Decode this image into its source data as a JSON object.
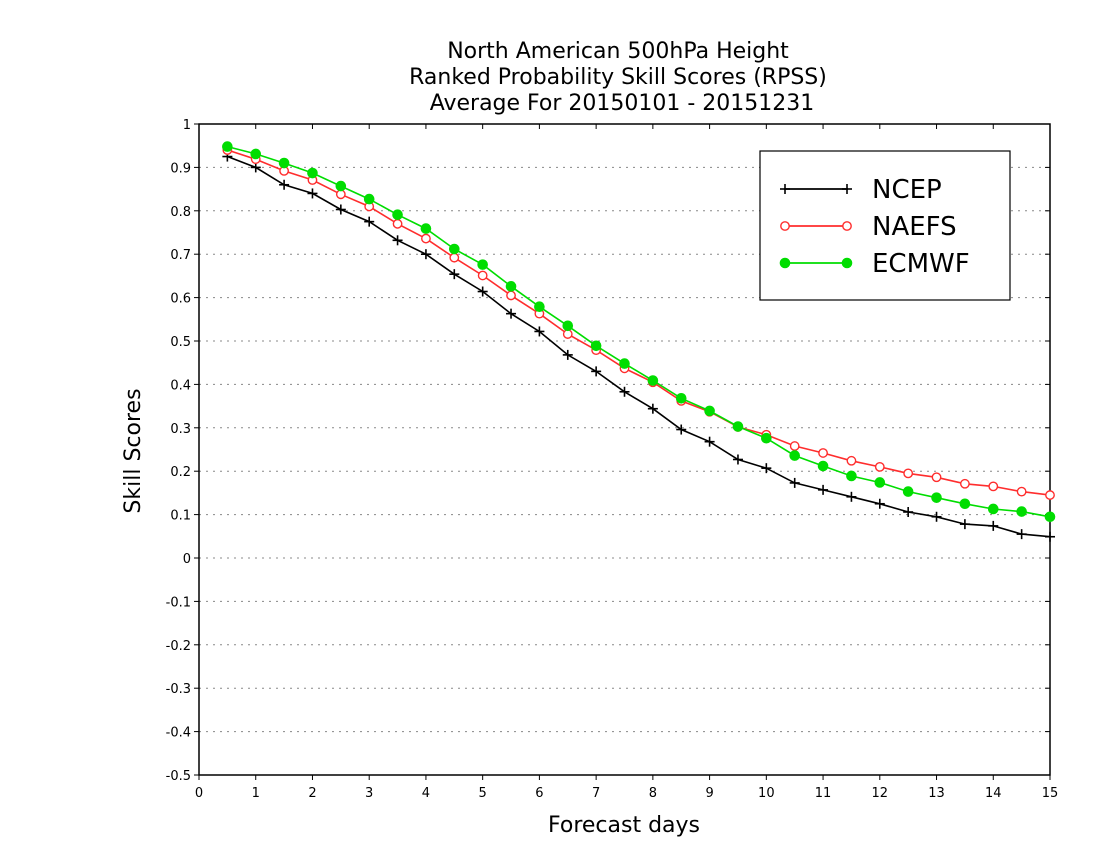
{
  "chart_data": {
    "type": "line",
    "title": [
      "North American 500hPa Height",
      "Ranked Probability Skill Scores (RPSS)",
      "Average For 20150101 - 20151231"
    ],
    "xlabel": "Forecast days",
    "ylabel": "Skill Scores",
    "xlim": [
      0,
      15
    ],
    "ylim": [
      -0.5,
      1
    ],
    "xticks": [
      0,
      1,
      2,
      3,
      4,
      5,
      6,
      7,
      8,
      9,
      10,
      11,
      12,
      13,
      14,
      15
    ],
    "yticks": [
      -0.5,
      -0.4,
      -0.3,
      -0.2,
      -0.1,
      0,
      0.1,
      0.2,
      0.3,
      0.4,
      0.5,
      0.6,
      0.7,
      0.8,
      0.9,
      1
    ],
    "ytick_labels": [
      "-0.5",
      "-0.4",
      "-0.3",
      "-0.2",
      "-0.1",
      "0",
      "0.1",
      "0.2",
      "0.3",
      "0.4",
      "0.5",
      "0.6",
      "0.7",
      "0.8",
      "0.9",
      "1"
    ],
    "grid": "horizontal dotted",
    "legend_position": "top-right",
    "x": [
      0.5,
      1,
      1.5,
      2,
      2.5,
      3,
      3.5,
      4,
      4.5,
      5,
      5.5,
      6,
      6.5,
      7,
      7.5,
      8,
      8.5,
      9,
      9.5,
      10,
      10.5,
      11,
      11.5,
      12,
      12.5,
      13,
      13.5,
      14,
      14.5,
      15
    ],
    "series": [
      {
        "name": "NCEP",
        "color": "#000000",
        "marker": "plus",
        "values": [
          0.925,
          0.9,
          0.86,
          0.84,
          0.803,
          0.775,
          0.732,
          0.7,
          0.654,
          0.614,
          0.563,
          0.522,
          0.468,
          0.43,
          0.383,
          0.344,
          0.296,
          0.268,
          0.227,
          0.207,
          0.173,
          0.157,
          0.141,
          0.125,
          0.106,
          0.095,
          0.078,
          0.074,
          0.055,
          0.049
        ]
      },
      {
        "name": "NAEFS",
        "color": "#ff2d2d",
        "marker": "open-circle",
        "values": [
          0.94,
          0.919,
          0.892,
          0.871,
          0.838,
          0.81,
          0.77,
          0.736,
          0.692,
          0.651,
          0.605,
          0.563,
          0.516,
          0.479,
          0.437,
          0.405,
          0.362,
          0.337,
          0.302,
          0.284,
          0.258,
          0.242,
          0.224,
          0.21,
          0.195,
          0.186,
          0.171,
          0.165,
          0.153,
          0.145
        ]
      },
      {
        "name": "ECMWF",
        "color": "#00dd00",
        "marker": "filled-circle",
        "values": [
          0.948,
          0.931,
          0.91,
          0.887,
          0.857,
          0.827,
          0.791,
          0.759,
          0.712,
          0.676,
          0.626,
          0.579,
          0.535,
          0.489,
          0.448,
          0.409,
          0.368,
          0.339,
          0.303,
          0.276,
          0.236,
          0.212,
          0.189,
          0.174,
          0.153,
          0.139,
          0.125,
          0.113,
          0.107,
          0.095
        ]
      }
    ]
  }
}
